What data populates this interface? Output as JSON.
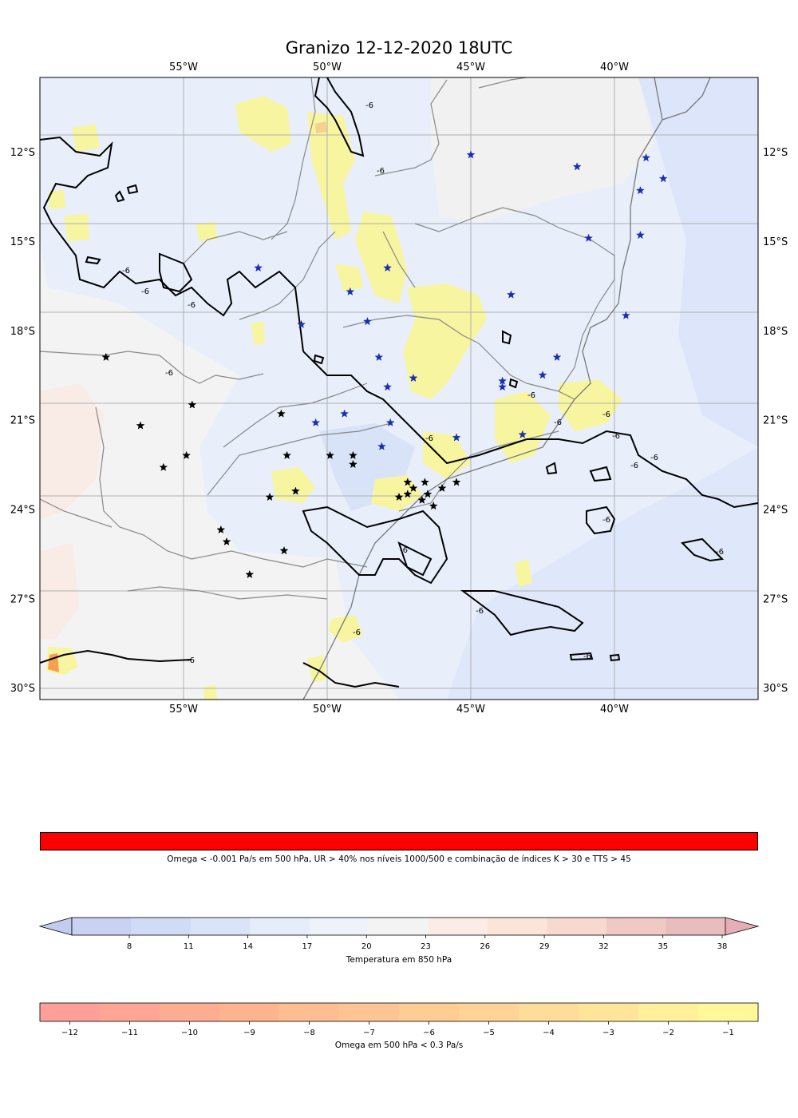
{
  "title": "Granizo 12-12-2020 18UTC",
  "map": {
    "lon_range": [
      -60,
      -35
    ],
    "lat_range": [
      -30.4,
      -9.5
    ],
    "lon_ticks": [
      -55,
      -50,
      -45,
      -40
    ],
    "lat_ticks": [
      -12,
      -15,
      -18,
      -21,
      -24,
      -27,
      -30
    ],
    "lon_tick_labels": [
      "55°W",
      "50°W",
      "45°W",
      "40°W"
    ],
    "lat_tick_labels": [
      "12°S",
      "15°S",
      "18°S",
      "21°S",
      "24°S",
      "27°S",
      "30°S"
    ],
    "contour_label": "-6",
    "colors": {
      "land": "#f3f3f3",
      "ocean": "#dfe7fb",
      "cold_field": "#e8effb",
      "omega_yellow": "#f7f5a0",
      "omega_orange": "#f5a050",
      "borders": "#888888",
      "contour": "#000000",
      "blue_star": "#1a2fb0",
      "black_star": "#000000"
    },
    "blue_stars": [
      {
        "lon": -45.0,
        "lat": -12.1
      },
      {
        "lon": -41.3,
        "lat": -12.5
      },
      {
        "lon": -38.9,
        "lat": -12.2
      },
      {
        "lon": -39.1,
        "lat": -13.3
      },
      {
        "lon": -38.3,
        "lat": -12.9
      },
      {
        "lon": -40.9,
        "lat": -14.9
      },
      {
        "lon": -39.1,
        "lat": -14.8
      },
      {
        "lon": -52.4,
        "lat": -15.9
      },
      {
        "lon": -47.9,
        "lat": -15.9
      },
      {
        "lon": -49.2,
        "lat": -16.7
      },
      {
        "lon": -43.6,
        "lat": -16.8
      },
      {
        "lon": -50.9,
        "lat": -17.8
      },
      {
        "lon": -48.6,
        "lat": -17.7
      },
      {
        "lon": -39.6,
        "lat": -17.5
      },
      {
        "lon": -48.2,
        "lat": -18.9
      },
      {
        "lon": -47.0,
        "lat": -19.6
      },
      {
        "lon": -47.9,
        "lat": -19.9
      },
      {
        "lon": -43.9,
        "lat": -19.7
      },
      {
        "lon": -43.9,
        "lat": -19.9
      },
      {
        "lon": -42.5,
        "lat": -19.5
      },
      {
        "lon": -42.0,
        "lat": -18.9
      },
      {
        "lon": -49.4,
        "lat": -20.8
      },
      {
        "lon": -50.4,
        "lat": -21.1
      },
      {
        "lon": -47.8,
        "lat": -21.1
      },
      {
        "lon": -48.1,
        "lat": -21.9
      },
      {
        "lon": -45.5,
        "lat": -21.6
      },
      {
        "lon": -43.2,
        "lat": -21.5
      }
    ],
    "black_stars": [
      {
        "lon": -57.7,
        "lat": -18.9
      },
      {
        "lon": -54.7,
        "lat": -20.5
      },
      {
        "lon": -56.5,
        "lat": -21.2
      },
      {
        "lon": -51.6,
        "lat": -20.8
      },
      {
        "lon": -54.9,
        "lat": -22.2
      },
      {
        "lon": -55.7,
        "lat": -22.6
      },
      {
        "lon": -51.4,
        "lat": -22.2
      },
      {
        "lon": -49.9,
        "lat": -22.2
      },
      {
        "lon": -49.1,
        "lat": -22.2
      },
      {
        "lon": -49.1,
        "lat": -22.5
      },
      {
        "lon": -52.0,
        "lat": -23.6
      },
      {
        "lon": -51.1,
        "lat": -23.4
      },
      {
        "lon": -47.2,
        "lat": -23.1
      },
      {
        "lon": -47.0,
        "lat": -23.3
      },
      {
        "lon": -46.6,
        "lat": -23.1
      },
      {
        "lon": -47.5,
        "lat": -23.6
      },
      {
        "lon": -47.2,
        "lat": -23.5
      },
      {
        "lon": -46.5,
        "lat": -23.5
      },
      {
        "lon": -46.7,
        "lat": -23.7
      },
      {
        "lon": -46.0,
        "lat": -23.3
      },
      {
        "lon": -45.5,
        "lat": -23.1
      },
      {
        "lon": -46.3,
        "lat": -23.9
      },
      {
        "lon": -53.7,
        "lat": -24.7
      },
      {
        "lon": -53.5,
        "lat": -25.1
      },
      {
        "lon": -51.5,
        "lat": -25.4
      },
      {
        "lon": -52.7,
        "lat": -26.2
      }
    ]
  },
  "colorbars": {
    "criteria": {
      "label": "Omega < -0.001 Pa/s em 500 hPa, UR > 40% nos níveis 1000/500 e combinação de índices K > 30 e TTS > 45",
      "color": "#ff0000"
    },
    "temperature": {
      "label": "Temperatura em 850 hPa",
      "ticks": [
        "8",
        "11",
        "14",
        "17",
        "20",
        "23",
        "26",
        "29",
        "32",
        "35",
        "38"
      ],
      "colors": [
        "#c9d2f2",
        "#d0dcf6",
        "#dae4f8",
        "#e6edfa",
        "#eef3fb",
        "#f3f3f3",
        "#fbece6",
        "#fce4d8",
        "#f8d9cf",
        "#f1c9c4",
        "#e9bcbd"
      ],
      "under_color": "#c3cbee",
      "over_color": "#e5aeb6"
    },
    "omega": {
      "label": "Omega em 500 hPa < 0.3 Pa/s",
      "ticks": [
        "−12",
        "−11",
        "−10",
        "−9",
        "−8",
        "−7",
        "−6",
        "−5",
        "−4",
        "−3",
        "−2",
        "−1"
      ],
      "colors": [
        "#ff9f9a",
        "#ffa596",
        "#ffad92",
        "#ffb490",
        "#ffbe92",
        "#ffc494",
        "#ffcc94",
        "#ffd496",
        "#ffdd98",
        "#ffe59a",
        "#fff09b",
        "#fff89b"
      ]
    }
  }
}
